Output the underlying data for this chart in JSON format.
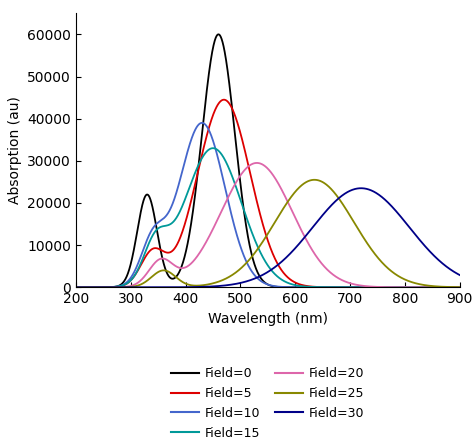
{
  "xlabel": "Wavelength (nm)",
  "ylabel": "Absorption (au)",
  "xlim": [
    200,
    900
  ],
  "ylim": [
    0,
    65000
  ],
  "yticks": [
    0,
    10000,
    20000,
    30000,
    40000,
    50000,
    60000
  ],
  "xticks": [
    200,
    300,
    400,
    500,
    600,
    700,
    800,
    900
  ],
  "curves": [
    {
      "label": "Field=0",
      "color": "#000000",
      "components": [
        {
          "peak": 460,
          "amplitude": 60000,
          "sigma": 30
        },
        {
          "peak": 330,
          "amplitude": 22000,
          "sigma": 18
        }
      ]
    },
    {
      "label": "Field=5",
      "color": "#dd0000",
      "components": [
        {
          "peak": 470,
          "amplitude": 44500,
          "sigma": 48
        },
        {
          "peak": 340,
          "amplitude": 8000,
          "sigma": 22
        }
      ]
    },
    {
      "label": "Field=10",
      "color": "#4466cc",
      "components": [
        {
          "peak": 430,
          "amplitude": 39000,
          "sigma": 42
        },
        {
          "peak": 340,
          "amplitude": 10000,
          "sigma": 22
        }
      ]
    },
    {
      "label": "Field=15",
      "color": "#009999",
      "components": [
        {
          "peak": 450,
          "amplitude": 33000,
          "sigma": 52
        },
        {
          "peak": 345,
          "amplitude": 9000,
          "sigma": 22
        }
      ]
    },
    {
      "label": "Field=20",
      "color": "#dd66aa",
      "components": [
        {
          "peak": 530,
          "amplitude": 29500,
          "sigma": 65
        },
        {
          "peak": 355,
          "amplitude": 6000,
          "sigma": 22
        }
      ]
    },
    {
      "label": "Field=25",
      "color": "#888800",
      "components": [
        {
          "peak": 635,
          "amplitude": 25500,
          "sigma": 72
        },
        {
          "peak": 360,
          "amplitude": 4000,
          "sigma": 22
        }
      ]
    },
    {
      "label": "Field=30",
      "color": "#000088",
      "components": [
        {
          "peak": 720,
          "amplitude": 23500,
          "sigma": 88
        }
      ]
    }
  ],
  "figsize": [
    4.74,
    4.42
  ],
  "dpi": 100
}
